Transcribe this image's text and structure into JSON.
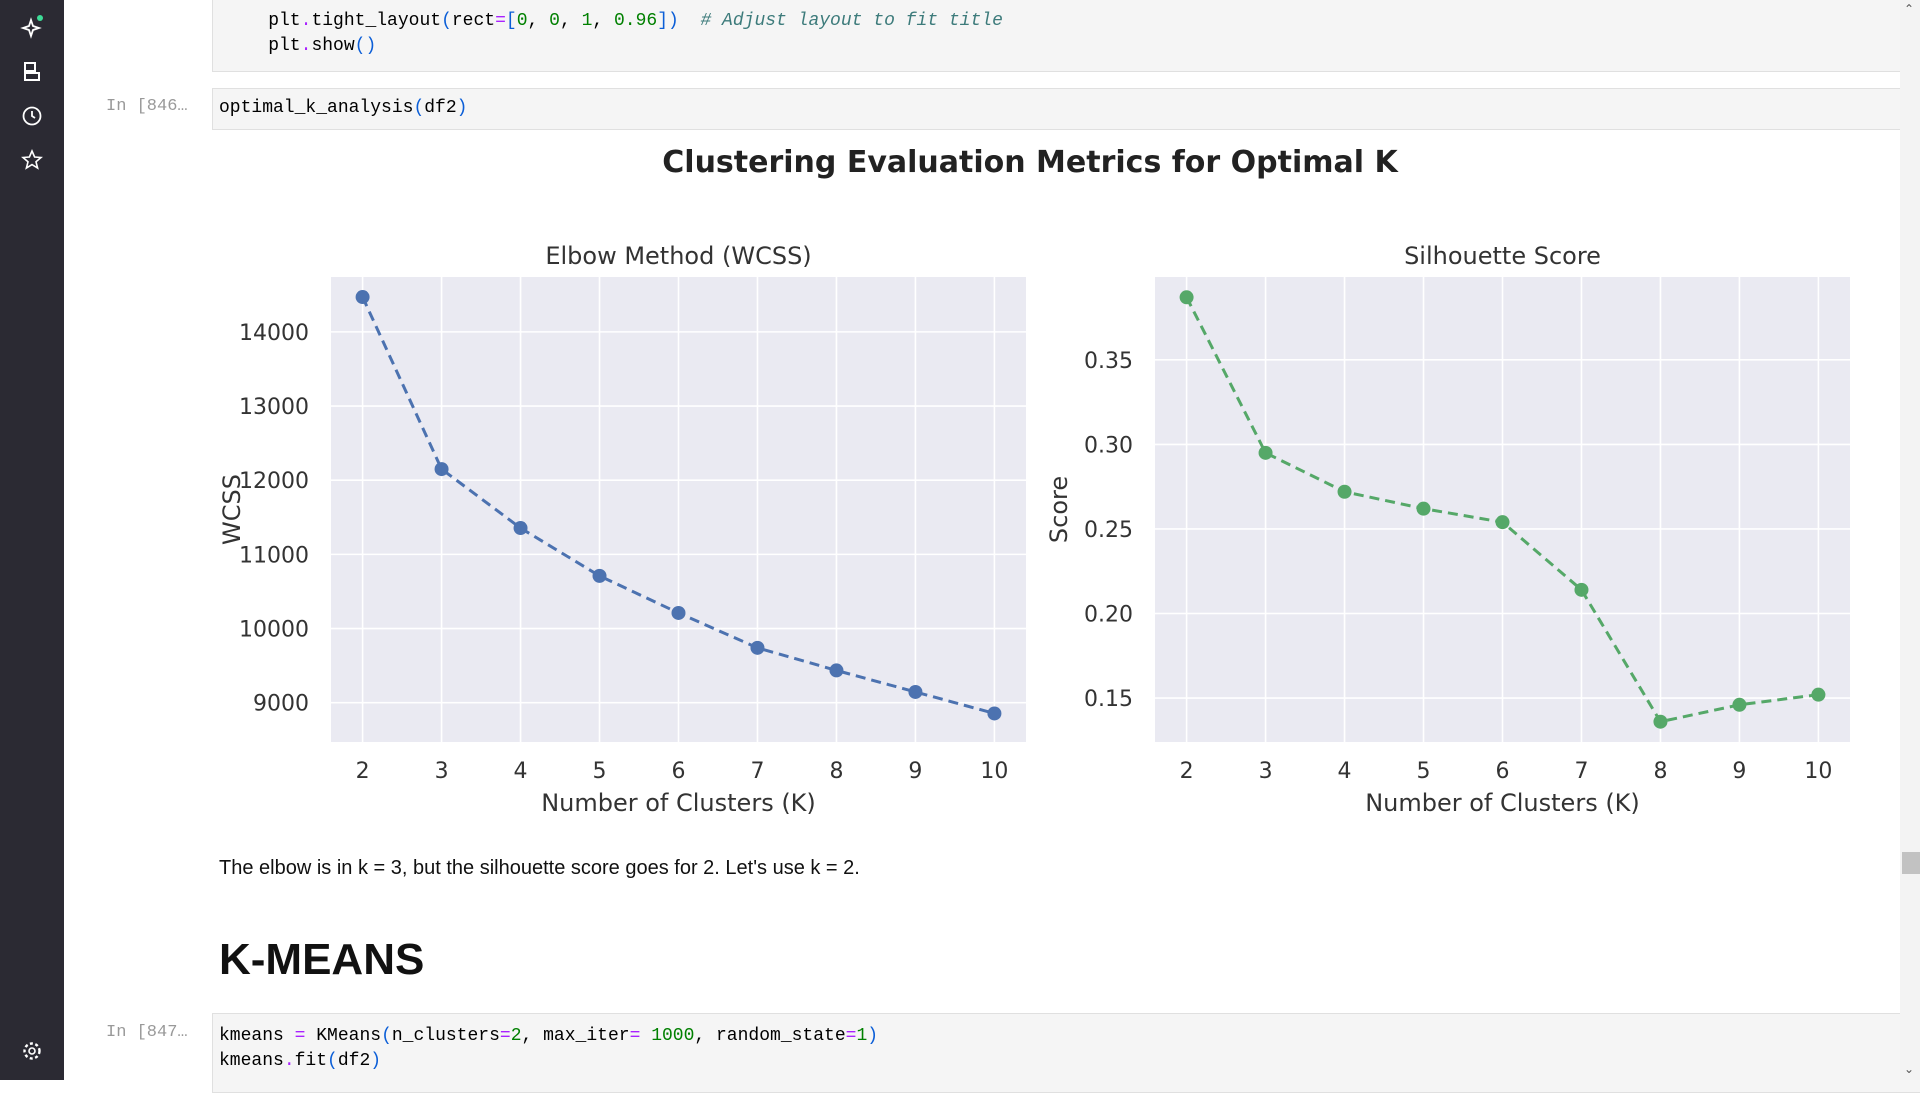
{
  "sidebar": {
    "icons": [
      "sparkle-icon",
      "save-icon",
      "clock-icon",
      "star-icon",
      "gear-icon"
    ],
    "status_dot_color": "#3ddc97"
  },
  "cells": {
    "prev_code": {
      "lines": [
        [
          {
            "t": "    plt",
            "k": "plain"
          },
          {
            "t": ".",
            "k": "op"
          },
          {
            "t": "tight_layout",
            "k": "plain"
          },
          {
            "t": "(",
            "k": "paren"
          },
          {
            "t": "rect",
            "k": "plain"
          },
          {
            "t": "=",
            "k": "op"
          },
          {
            "t": "[",
            "k": "paren"
          },
          {
            "t": "0",
            "k": "num"
          },
          {
            "t": ", ",
            "k": "plain"
          },
          {
            "t": "0",
            "k": "num"
          },
          {
            "t": ", ",
            "k": "plain"
          },
          {
            "t": "1",
            "k": "num"
          },
          {
            "t": ", ",
            "k": "plain"
          },
          {
            "t": "0.96",
            "k": "num"
          },
          {
            "t": "]",
            "k": "paren"
          },
          {
            "t": ")",
            "k": "paren"
          },
          {
            "t": "  ",
            "k": "plain"
          },
          {
            "t": "# Adjust layout to fit title",
            "k": "cmt"
          }
        ],
        [
          {
            "t": "    plt",
            "k": "plain"
          },
          {
            "t": ".",
            "k": "op"
          },
          {
            "t": "show",
            "k": "plain"
          },
          {
            "t": "()",
            "k": "paren"
          }
        ]
      ]
    },
    "analysis": {
      "prompt": "In [846…",
      "lines": [
        [
          {
            "t": "optimal_k_analysis",
            "k": "plain"
          },
          {
            "t": "(",
            "k": "paren"
          },
          {
            "t": "df2",
            "k": "plain"
          },
          {
            "t": ")",
            "k": "paren"
          }
        ]
      ]
    },
    "markdown_text": "The elbow is in k = 3, but the silhouette score goes for 2. Let's use k = 2.",
    "heading": "K-MEANS",
    "kmeans": {
      "prompt": "In [847…",
      "lines": [
        [
          {
            "t": "kmeans ",
            "k": "plain"
          },
          {
            "t": "=",
            "k": "op"
          },
          {
            "t": " KMeans",
            "k": "plain"
          },
          {
            "t": "(",
            "k": "paren"
          },
          {
            "t": "n_clusters",
            "k": "plain"
          },
          {
            "t": "=",
            "k": "op"
          },
          {
            "t": "2",
            "k": "num"
          },
          {
            "t": ", max_iter",
            "k": "plain"
          },
          {
            "t": "=",
            "k": "op"
          },
          {
            "t": " ",
            "k": "plain"
          },
          {
            "t": "1000",
            "k": "num"
          },
          {
            "t": ", random_state",
            "k": "plain"
          },
          {
            "t": "=",
            "k": "op"
          },
          {
            "t": "1",
            "k": "num"
          },
          {
            "t": ")",
            "k": "paren"
          }
        ],
        [
          {
            "t": "kmeans",
            "k": "plain"
          },
          {
            "t": ".",
            "k": "op"
          },
          {
            "t": "fit",
            "k": "plain"
          },
          {
            "t": "(",
            "k": "paren"
          },
          {
            "t": "df2",
            "k": "plain"
          },
          {
            "t": ")",
            "k": "paren"
          }
        ]
      ]
    }
  },
  "figure": {
    "suptitle": "Clustering Evaluation Metrics for Optimal K"
  },
  "chart_data": [
    {
      "type": "line",
      "title": "Elbow Method (WCSS)",
      "xlabel": "Number of Clusters (K)",
      "ylabel": "WCSS",
      "x": [
        2,
        3,
        4,
        5,
        6,
        7,
        8,
        9,
        10
      ],
      "values": [
        14470,
        12150,
        11355,
        10710,
        10210,
        9740,
        9435,
        9145,
        8855
      ],
      "xlim": [
        1.6,
        10.4
      ],
      "ylim": [
        8470,
        14740
      ],
      "yticks": [
        9000,
        10000,
        11000,
        12000,
        13000,
        14000
      ],
      "xticks": [
        2,
        3,
        4,
        5,
        6,
        7,
        8,
        9,
        10
      ],
      "color": "#4c72b0",
      "line_style": "dashed",
      "marker": "circle",
      "grid": true,
      "background": "#eaeaf2"
    },
    {
      "type": "line",
      "title": "Silhouette Score",
      "xlabel": "Number of Clusters (K)",
      "ylabel": "Score",
      "x": [
        2,
        3,
        4,
        5,
        6,
        7,
        8,
        9,
        10
      ],
      "values": [
        0.387,
        0.295,
        0.272,
        0.262,
        0.254,
        0.214,
        0.136,
        0.146,
        0.152
      ],
      "xlim": [
        1.6,
        10.4
      ],
      "ylim": [
        0.124,
        0.399
      ],
      "yticks": [
        0.15,
        0.2,
        0.25,
        0.3,
        0.35
      ],
      "xticks": [
        2,
        3,
        4,
        5,
        6,
        7,
        8,
        9,
        10
      ],
      "color": "#55a868",
      "line_style": "dashed",
      "marker": "circle",
      "grid": true,
      "background": "#eaeaf2"
    }
  ]
}
